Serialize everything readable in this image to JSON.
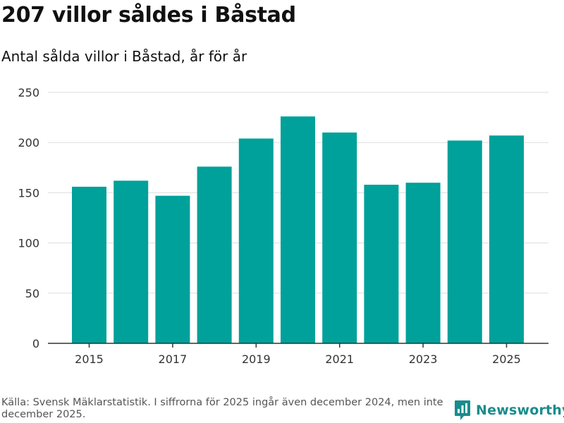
{
  "header": {
    "title": "207 villor såldes i Båstad",
    "subtitle": "Antal sålda villor i Båstad, år för år"
  },
  "footer": {
    "source": "Källa: Svensk Mäklarstatistik. I siffrorna för 2025 ingår även december 2024, men inte december 2025.",
    "brand": "Newsworthy"
  },
  "colors": {
    "bar": "#00a19a",
    "grid": "#dddddd",
    "axis": "#333333",
    "brand": "#1a8c8c"
  },
  "chart_data": {
    "type": "bar",
    "title": "207 villor såldes i Båstad",
    "subtitle": "Antal sålda villor i Båstad, år för år",
    "categories": [
      "2015",
      "2016",
      "2017",
      "2018",
      "2019",
      "2020",
      "2021",
      "2022",
      "2023",
      "2024",
      "2025"
    ],
    "values": [
      156,
      162,
      147,
      176,
      204,
      226,
      210,
      158,
      160,
      202,
      207
    ],
    "x_tick_labels": [
      "2015",
      "2017",
      "2019",
      "2021",
      "2023",
      "2025"
    ],
    "y_ticks": [
      "0",
      "50",
      "100",
      "150",
      "200",
      "250"
    ],
    "ylim": [
      0,
      250
    ],
    "xlabel": "",
    "ylabel": "",
    "grid": true,
    "legend": "none"
  }
}
